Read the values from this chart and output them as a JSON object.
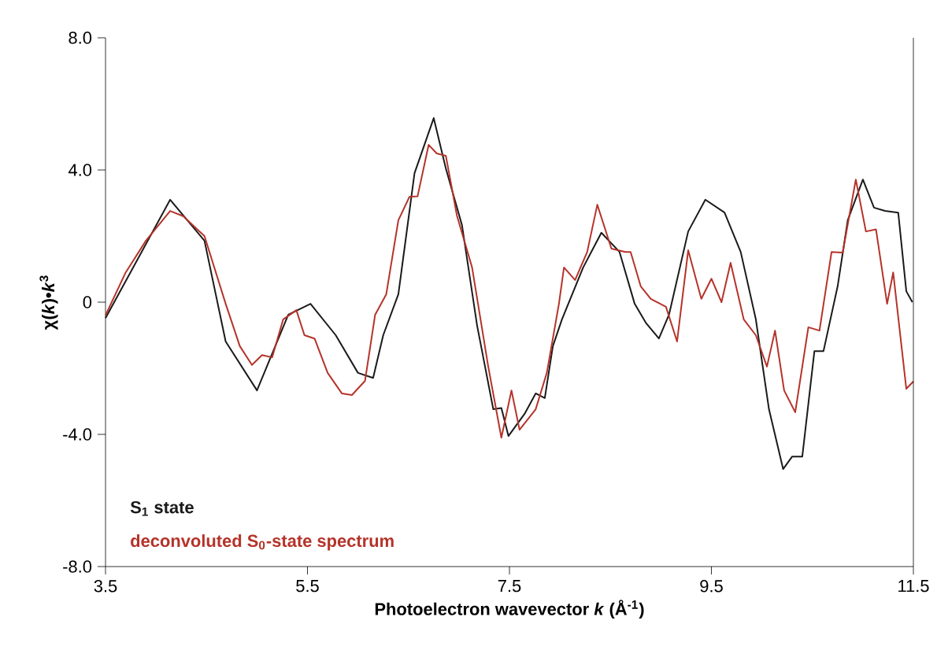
{
  "chart_data": {
    "type": "line",
    "xlabel": "Photoelectron wavevector *k* (Å$^{-1}$)",
    "ylabel": "χ(*k*)•*k*$^{3}$",
    "xlim": [
      3.5,
      11.5
    ],
    "ylim": [
      -8,
      8
    ],
    "xticks": [
      3.5,
      5.5,
      7.5,
      9.5,
      11.5
    ],
    "yticks": [
      {
        "value": -8,
        "label": "-8.0"
      },
      {
        "value": -4,
        "label": "-4.0"
      },
      0,
      {
        "value": 4,
        "label": "4.0"
      },
      {
        "value": 8,
        "label": "8.0"
      }
    ],
    "legend": "bottom left",
    "marker": "none",
    "line_style": "solid",
    "series": [
      {
        "name": "S$_{1}$ state",
        "color": "#1a1a1a",
        "x": [
          3.5,
          4.14,
          4.48,
          4.69,
          5.0,
          5.31,
          5.53,
          5.78,
          6.0,
          6.15,
          6.25,
          6.4,
          6.56,
          6.75,
          6.87,
          7.03,
          7.18,
          7.34,
          7.42,
          7.49,
          7.65,
          7.76,
          7.85,
          7.93,
          8.02,
          8.23,
          8.41,
          8.59,
          8.74,
          8.85,
          8.98,
          9.08,
          9.27,
          9.44,
          9.63,
          9.79,
          9.94,
          10.07,
          10.21,
          10.3,
          10.4,
          10.52,
          10.61,
          10.75,
          10.85,
          11.0,
          11.11,
          11.22,
          11.35,
          11.43,
          11.49
        ],
        "values": [
          -0.48,
          3.1,
          1.86,
          -1.19,
          -2.67,
          -0.38,
          -0.05,
          -1.0,
          -2.14,
          -2.29,
          -1.0,
          0.24,
          3.9,
          5.57,
          4.05,
          2.33,
          -0.71,
          -3.24,
          -3.2,
          -4.05,
          -3.38,
          -2.76,
          -2.9,
          -1.33,
          -0.52,
          1.05,
          2.1,
          1.52,
          -0.05,
          -0.62,
          -1.1,
          -0.38,
          2.14,
          3.1,
          2.71,
          1.52,
          -0.52,
          -3.24,
          -5.05,
          -4.67,
          -4.67,
          -1.48,
          -1.48,
          0.48,
          2.48,
          3.71,
          2.86,
          2.76,
          2.71,
          0.33,
          0.0
        ]
      },
      {
        "name": "deconvoluted S$_{0}$-state spectrum",
        "color": "#b5332a",
        "x": [
          3.5,
          3.7,
          3.9,
          4.14,
          4.27,
          4.48,
          4.69,
          4.83,
          4.95,
          5.05,
          5.15,
          5.26,
          5.39,
          5.47,
          5.57,
          5.7,
          5.84,
          5.94,
          6.07,
          6.17,
          6.28,
          6.4,
          6.51,
          6.59,
          6.7,
          6.78,
          6.87,
          6.98,
          7.13,
          7.29,
          7.42,
          7.52,
          7.6,
          7.76,
          7.87,
          7.99,
          8.04,
          8.15,
          8.27,
          8.37,
          8.51,
          8.65,
          8.7,
          8.8,
          8.9,
          9.05,
          9.16,
          9.27,
          9.4,
          9.5,
          9.6,
          9.69,
          9.82,
          9.94,
          10.05,
          10.13,
          10.22,
          10.33,
          10.46,
          10.57,
          10.69,
          10.8,
          10.93,
          11.03,
          11.13,
          11.24,
          11.3,
          11.43,
          11.5
        ],
        "values": [
          -0.4,
          0.9,
          1.86,
          2.76,
          2.6,
          2.0,
          -0.05,
          -1.33,
          -1.9,
          -1.6,
          -1.67,
          -0.52,
          -0.24,
          -1.0,
          -1.1,
          -2.14,
          -2.76,
          -2.81,
          -2.38,
          -0.38,
          0.24,
          2.48,
          3.19,
          3.2,
          4.76,
          4.5,
          4.43,
          2.62,
          1.05,
          -1.95,
          -4.1,
          -2.67,
          -3.86,
          -3.24,
          -2.14,
          -0.05,
          1.05,
          0.67,
          1.52,
          2.95,
          1.62,
          1.52,
          1.52,
          0.48,
          0.1,
          -0.14,
          -1.19,
          1.57,
          0.1,
          0.71,
          0.0,
          1.19,
          -0.52,
          -1.0,
          -1.95,
          -0.86,
          -2.67,
          -3.33,
          -0.76,
          -0.86,
          1.52,
          1.5,
          3.71,
          2.14,
          2.2,
          -0.05,
          0.9,
          -2.62,
          -2.4
        ]
      }
    ]
  }
}
